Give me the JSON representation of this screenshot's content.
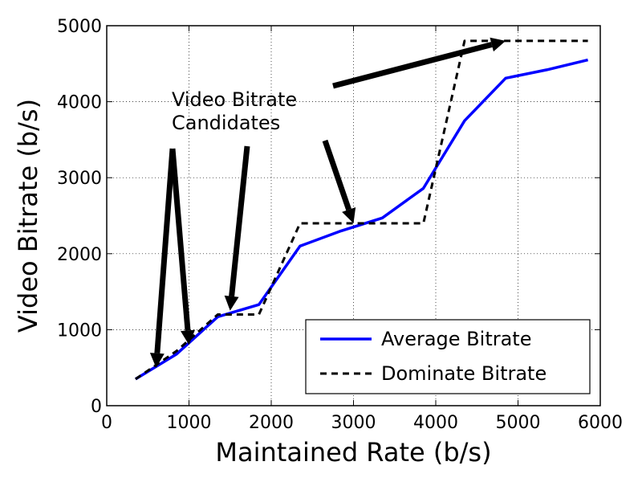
{
  "chart_data": {
    "type": "line",
    "title": "",
    "xlabel": "Maintained Rate (b/s)",
    "ylabel": "Video Bitrate (b/s)",
    "xlim": [
      0,
      6000
    ],
    "ylim": [
      0,
      5000
    ],
    "xticks": [
      0,
      1000,
      2000,
      3000,
      4000,
      5000,
      6000
    ],
    "yticks": [
      0,
      1000,
      2000,
      3000,
      4000,
      5000
    ],
    "xtick_labels": [
      "0",
      "1000",
      "2000",
      "3000",
      "4000",
      "5000",
      "6000"
    ],
    "ytick_labels": [
      "0",
      "1000",
      "2000",
      "3000",
      "4000",
      "5000"
    ],
    "grid": true,
    "legend_position": "bottom-right",
    "series": [
      {
        "name": "Average Bitrate",
        "color": "#0000ff",
        "style": "solid",
        "x": [
          350,
          850,
          1350,
          1850,
          2350,
          2850,
          3350,
          3850,
          4350,
          4850,
          5350,
          5850
        ],
        "y": [
          350,
          680,
          1170,
          1330,
          2100,
          2300,
          2470,
          2860,
          3750,
          4310,
          4420,
          4550
        ]
      },
      {
        "name": "Dominate Bitrate",
        "color": "#000000",
        "style": "dashed",
        "x": [
          350,
          850,
          1350,
          1850,
          2350,
          2850,
          3350,
          3850,
          4350,
          4850,
          5350,
          5850
        ],
        "y": [
          350,
          720,
          1200,
          1200,
          2400,
          2400,
          2400,
          2400,
          4800,
          4800,
          4800,
          4800
        ]
      }
    ],
    "annotations": [
      {
        "text": [
          "Video Bitrate",
          "Candidates"
        ],
        "arrows_to": [
          {
            "x": 600,
            "y": 500
          },
          {
            "x": 1000,
            "y": 800
          },
          {
            "x": 1500,
            "y": 1250
          },
          {
            "x": 3000,
            "y": 2400
          },
          {
            "x": 4850,
            "y": 4800
          }
        ]
      }
    ]
  }
}
